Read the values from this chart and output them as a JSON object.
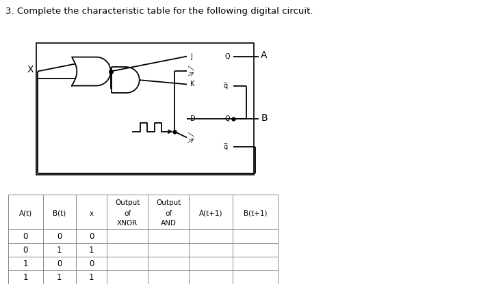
{
  "title": "3. Complete the characteristic table for the following digital circuit.",
  "title_fontsize": 9.5,
  "background_color": "#ffffff",
  "table": {
    "col_headers_line1": [
      "",
      "",
      "",
      "Output",
      "Output",
      "",
      ""
    ],
    "col_headers_line2": [
      "A(t)",
      "B(t)",
      "x",
      "of",
      "of",
      "A(t+1)",
      "B(t+1)"
    ],
    "col_headers_line3": [
      "",
      "",
      "",
      "XNOR",
      "AND",
      "",
      ""
    ],
    "rows": [
      [
        "0",
        "0",
        "0",
        "",
        "",
        "",
        ""
      ],
      [
        "0",
        "1",
        "1",
        "",
        "",
        "",
        ""
      ],
      [
        "1",
        "0",
        "0",
        "",
        "",
        "",
        ""
      ],
      [
        "1",
        "1",
        "1",
        "",
        "",
        "",
        ""
      ]
    ]
  },
  "circuit": {
    "line_color": "#000000",
    "lw": 1.3
  }
}
